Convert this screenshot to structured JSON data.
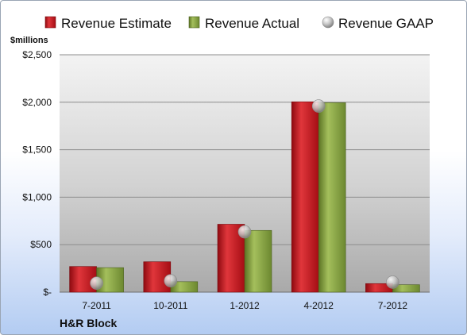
{
  "chart_data": {
    "type": "bar",
    "unit_label": "$millions",
    "company": "H&R Block",
    "categories": [
      "7-2011",
      "10-2011",
      "1-2012",
      "4-2012",
      "7-2012"
    ],
    "series": [
      {
        "name": "Revenue Estimate",
        "type": "bar",
        "color": "#c8101a",
        "values": [
          270,
          320,
          715,
          2005,
          90
        ]
      },
      {
        "name": "Revenue Actual",
        "type": "bar",
        "color": "#7f9a3a",
        "values": [
          258,
          110,
          650,
          1995,
          78
        ]
      },
      {
        "name": "Revenue GAAP",
        "type": "marker",
        "color": "#a0a0a0",
        "values": [
          95,
          120,
          635,
          1960,
          105
        ]
      }
    ],
    "y_ticks": [
      {
        "value": 0,
        "label": "$-"
      },
      {
        "value": 500,
        "label": "$500"
      },
      {
        "value": 1000,
        "label": "$1,000"
      },
      {
        "value": 1500,
        "label": "$1,500"
      },
      {
        "value": 2000,
        "label": "$2,000"
      },
      {
        "value": 2500,
        "label": "$2,500"
      }
    ],
    "ylim": [
      0,
      2500
    ],
    "grid": true,
    "legend_position": "top"
  }
}
